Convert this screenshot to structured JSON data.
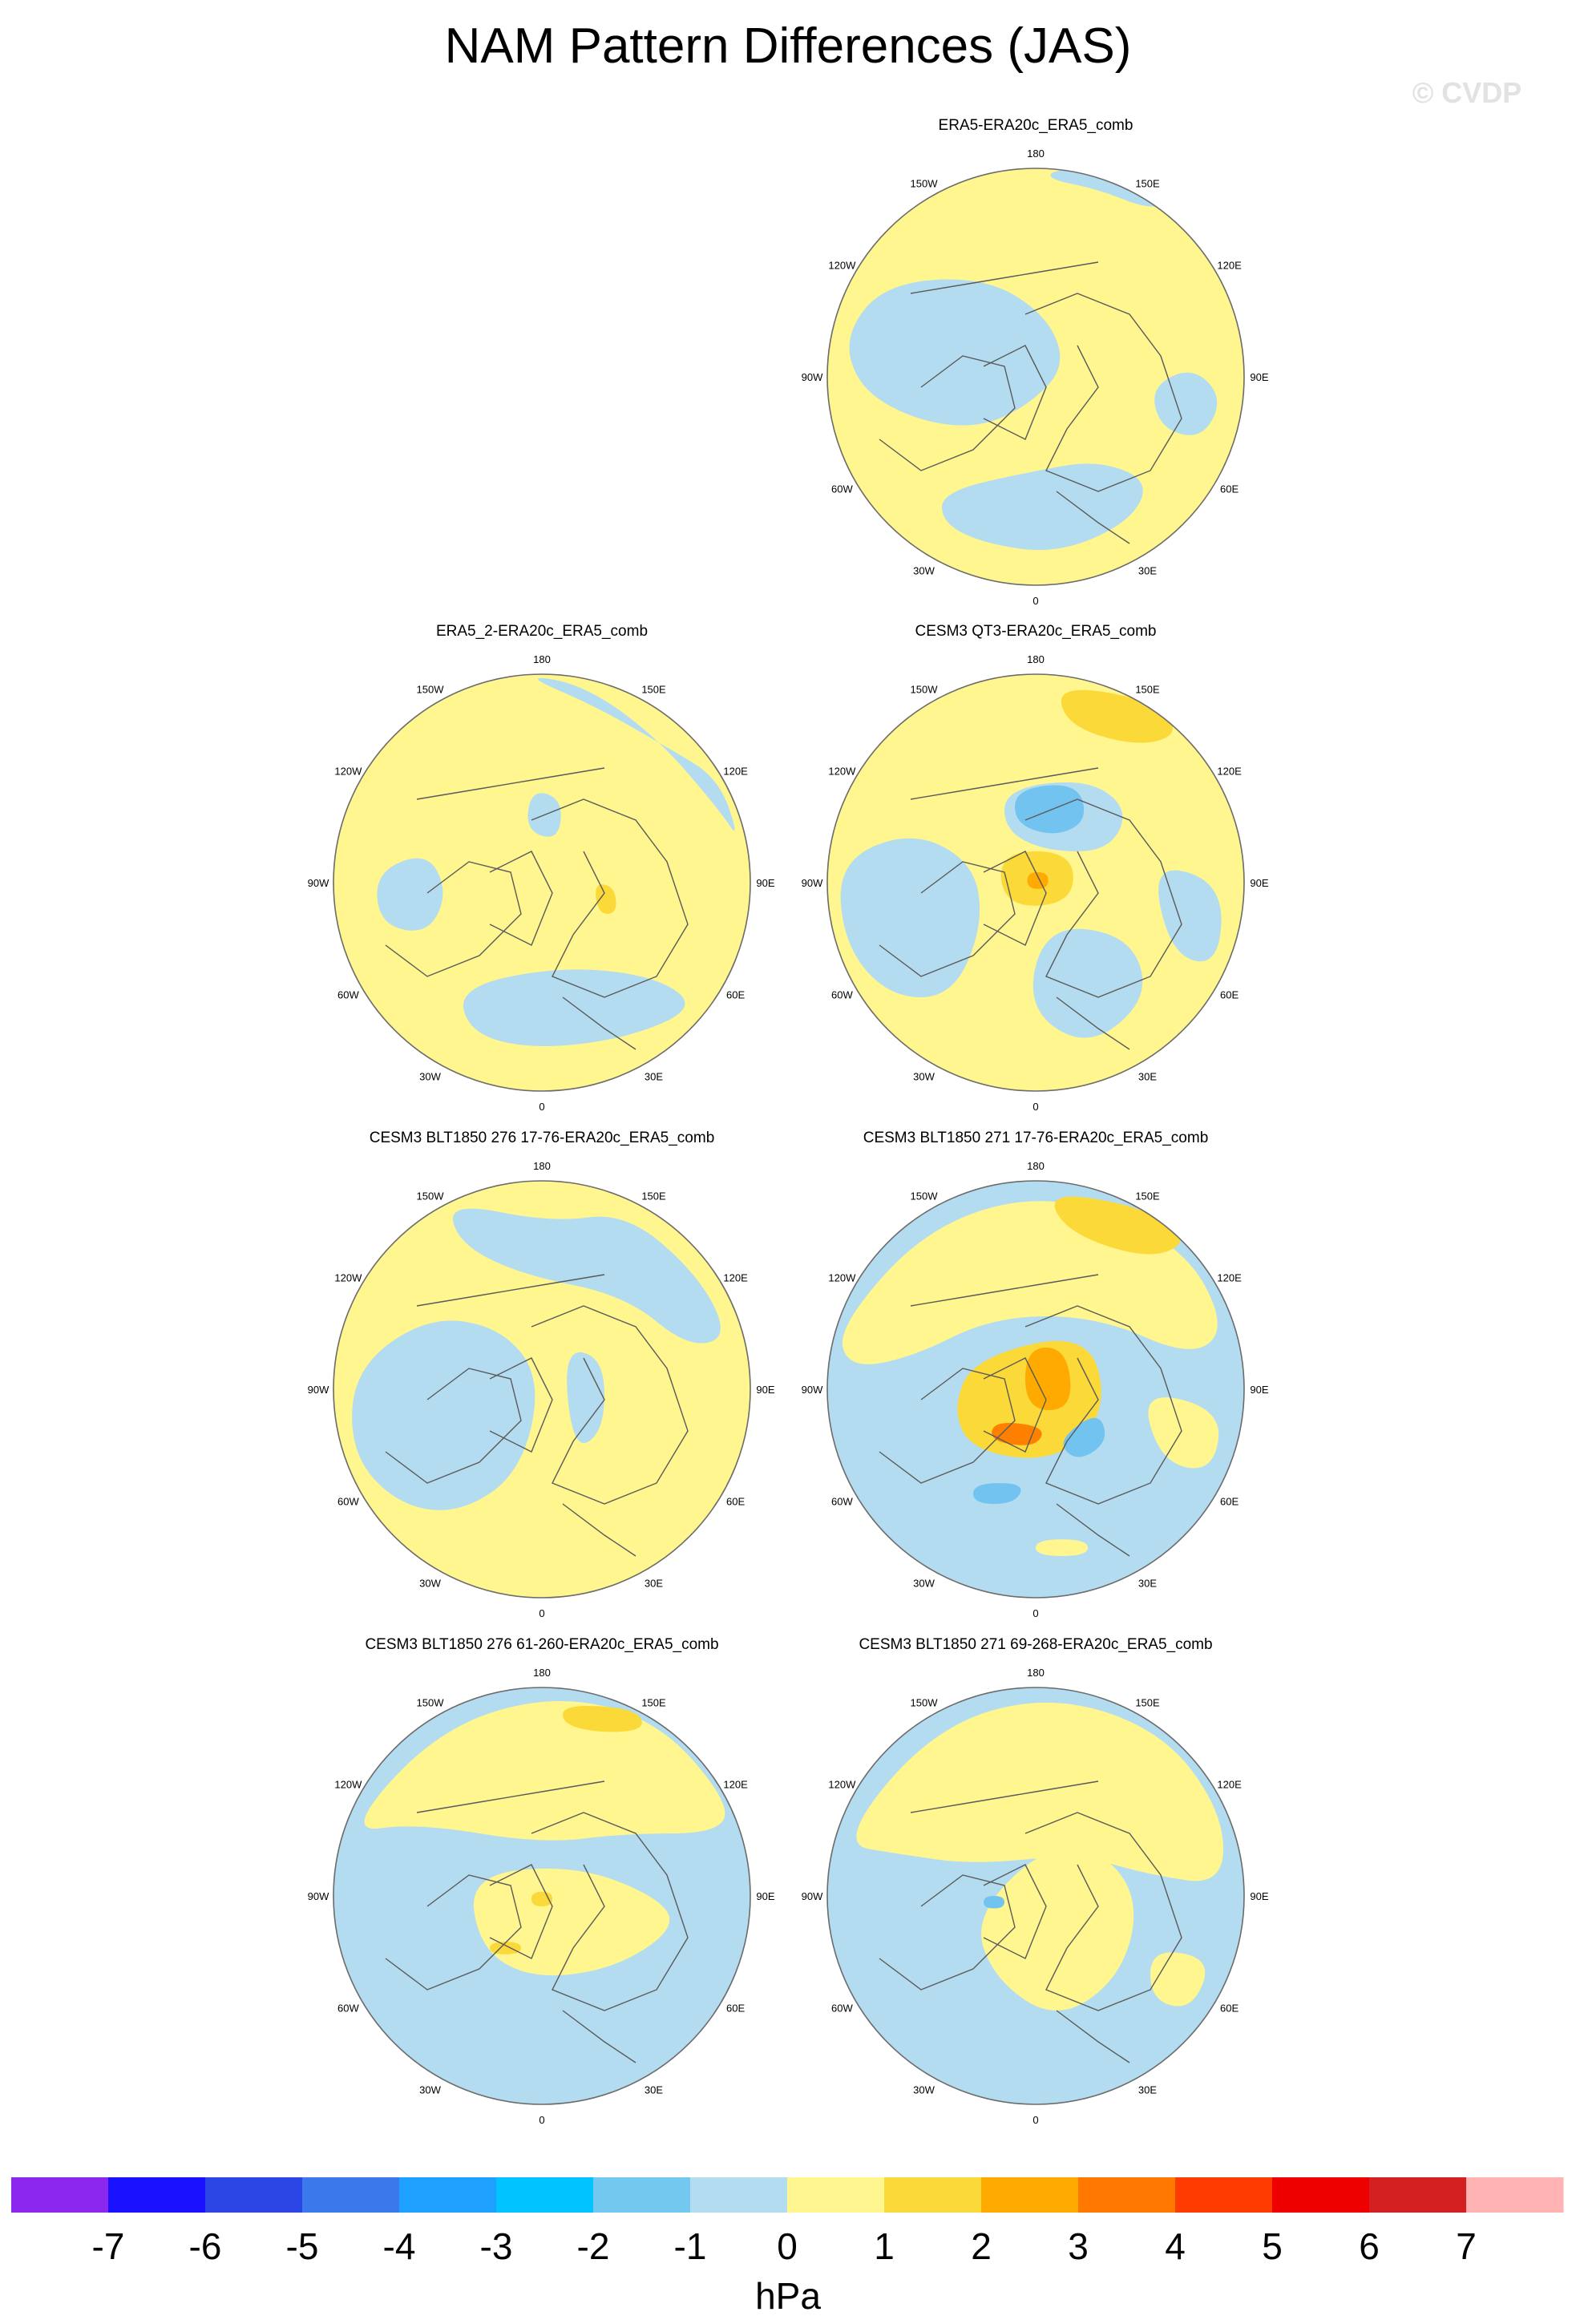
{
  "title": "NAM Pattern Differences (JAS)",
  "watermark": "© CVDP",
  "colors": {
    "land_line": "#5a5a5a",
    "frame": "#6b6b6b",
    "watermark": "#e2e2e2"
  },
  "lon_labels": [
    "180",
    "150E",
    "120E",
    "90E",
    "60E",
    "30E",
    "0",
    "30W",
    "60W",
    "90W",
    "120W",
    "150W"
  ],
  "panels": [
    {
      "title": "ERA5-ERA20c_ERA5_comb",
      "base_color": "#fff68f",
      "blobs": [
        {
          "color": "#b4dcf0",
          "pts": [
            [
              0.05,
              -0.95
            ],
            [
              0.3,
              -0.9
            ],
            [
              0.55,
              -0.8
            ],
            [
              0.65,
              -0.85
            ],
            [
              0.5,
              -0.98
            ],
            [
              0.1,
              -1.0
            ]
          ]
        },
        {
          "color": "#b4dcf0",
          "pts": [
            [
              -0.72,
              -0.45
            ],
            [
              -0.25,
              -0.48
            ],
            [
              0.05,
              -0.3
            ],
            [
              0.15,
              -0.05
            ],
            [
              -0.05,
              0.15
            ],
            [
              -0.3,
              0.25
            ],
            [
              -0.6,
              0.2
            ],
            [
              -0.85,
              0.05
            ],
            [
              -0.92,
              -0.2
            ]
          ]
        },
        {
          "color": "#b4dcf0",
          "pts": [
            [
              -0.45,
              0.55
            ],
            [
              0.0,
              0.45
            ],
            [
              0.3,
              0.4
            ],
            [
              0.55,
              0.5
            ],
            [
              0.45,
              0.7
            ],
            [
              0.1,
              0.85
            ],
            [
              -0.25,
              0.8
            ],
            [
              -0.45,
              0.7
            ]
          ]
        },
        {
          "color": "#b4dcf0",
          "pts": [
            [
              0.55,
              0.05
            ],
            [
              0.75,
              -0.05
            ],
            [
              0.9,
              0.1
            ],
            [
              0.8,
              0.3
            ],
            [
              0.6,
              0.25
            ]
          ]
        }
      ]
    },
    {
      "title": "ERA5_2-ERA20c_ERA5_comb",
      "base_color": "#fff68f",
      "blobs": [
        {
          "color": "#b4dcf0",
          "pts": [
            [
              -0.1,
              -1.0
            ],
            [
              0.25,
              -0.85
            ],
            [
              0.6,
              -0.65
            ],
            [
              0.85,
              -0.5
            ],
            [
              0.95,
              -0.2
            ],
            [
              0.85,
              -0.35
            ],
            [
              0.55,
              -0.7
            ],
            [
              0.2,
              -0.95
            ]
          ]
        },
        {
          "color": "#b4dcf0",
          "pts": [
            [
              -0.4,
              0.5
            ],
            [
              0.1,
              0.4
            ],
            [
              0.55,
              0.45
            ],
            [
              0.75,
              0.6
            ],
            [
              0.4,
              0.75
            ],
            [
              -0.05,
              0.8
            ],
            [
              -0.35,
              0.72
            ]
          ]
        },
        {
          "color": "#b4dcf0",
          "pts": [
            [
              -0.8,
              -0.05
            ],
            [
              -0.55,
              -0.15
            ],
            [
              -0.45,
              0.05
            ],
            [
              -0.55,
              0.25
            ],
            [
              -0.78,
              0.2
            ]
          ]
        },
        {
          "color": "#b4dcf0",
          "pts": [
            [
              -0.05,
              -0.45
            ],
            [
              0.1,
              -0.4
            ],
            [
              0.08,
              -0.2
            ],
            [
              -0.08,
              -0.25
            ]
          ]
        },
        {
          "color": "#fbd938",
          "pts": [
            [
              0.25,
              0.0
            ],
            [
              0.35,
              0.02
            ],
            [
              0.36,
              0.15
            ],
            [
              0.27,
              0.15
            ]
          ]
        }
      ]
    },
    {
      "title": "CESM3 QT3-ERA20c_ERA5_comb",
      "base_color": "#fff68f",
      "blobs": [
        {
          "color": "#b4dcf0",
          "pts": [
            [
              -0.95,
              -0.1
            ],
            [
              -0.6,
              -0.25
            ],
            [
              -0.3,
              -0.1
            ],
            [
              -0.25,
              0.2
            ],
            [
              -0.4,
              0.55
            ],
            [
              -0.7,
              0.55
            ],
            [
              -0.92,
              0.3
            ]
          ]
        },
        {
          "color": "#b4dcf0",
          "pts": [
            [
              -0.15,
              -0.45
            ],
            [
              0.25,
              -0.5
            ],
            [
              0.45,
              -0.35
            ],
            [
              0.35,
              -0.15
            ],
            [
              0.05,
              -0.15
            ],
            [
              -0.15,
              -0.25
            ]
          ]
        },
        {
          "color": "#b4dcf0",
          "pts": [
            [
              0.05,
              0.2
            ],
            [
              0.45,
              0.25
            ],
            [
              0.55,
              0.55
            ],
            [
              0.25,
              0.8
            ],
            [
              -0.05,
              0.6
            ]
          ]
        },
        {
          "color": "#b4dcf0",
          "pts": [
            [
              0.55,
              -0.1
            ],
            [
              0.9,
              0.0
            ],
            [
              0.88,
              0.4
            ],
            [
              0.65,
              0.35
            ]
          ]
        },
        {
          "color": "#73c3f0",
          "pts": [
            [
              -0.1,
              -0.45
            ],
            [
              0.2,
              -0.48
            ],
            [
              0.25,
              -0.3
            ],
            [
              0.1,
              -0.22
            ],
            [
              -0.1,
              -0.28
            ]
          ]
        },
        {
          "color": "#fbd938",
          "pts": [
            [
              0.1,
              -0.95
            ],
            [
              0.55,
              -0.88
            ],
            [
              0.7,
              -0.72
            ],
            [
              0.5,
              -0.65
            ],
            [
              0.15,
              -0.75
            ]
          ]
        },
        {
          "color": "#fbd938",
          "pts": [
            [
              -0.18,
              -0.15
            ],
            [
              0.18,
              -0.15
            ],
            [
              0.18,
              0.1
            ],
            [
              -0.15,
              0.12
            ]
          ]
        },
        {
          "color": "#ffaa00",
          "pts": [
            [
              -0.04,
              -0.05
            ],
            [
              0.06,
              -0.05
            ],
            [
              0.06,
              0.03
            ],
            [
              -0.04,
              0.03
            ]
          ]
        }
      ]
    },
    {
      "title": "CESM3 BLT1850 276 17-76-ERA20c_ERA5_comb",
      "base_color": "#fff68f",
      "blobs": [
        {
          "color": "#b4dcf0",
          "pts": [
            [
              -0.45,
              -0.9
            ],
            [
              0.05,
              -0.8
            ],
            [
              0.4,
              -0.85
            ],
            [
              0.75,
              -0.55
            ],
            [
              0.9,
              -0.25
            ],
            [
              0.7,
              -0.2
            ],
            [
              0.4,
              -0.45
            ],
            [
              -0.1,
              -0.55
            ],
            [
              -0.4,
              -0.7
            ]
          ]
        },
        {
          "color": "#b4dcf0",
          "pts": [
            [
              -0.9,
              -0.1
            ],
            [
              -0.55,
              -0.35
            ],
            [
              -0.2,
              -0.3
            ],
            [
              0.0,
              -0.05
            ],
            [
              -0.1,
              0.4
            ],
            [
              -0.4,
              0.6
            ],
            [
              -0.7,
              0.55
            ],
            [
              -0.92,
              0.3
            ]
          ]
        },
        {
          "color": "#b4dcf0",
          "pts": [
            [
              0.1,
              -0.2
            ],
            [
              0.3,
              -0.15
            ],
            [
              0.3,
              0.2
            ],
            [
              0.15,
              0.3
            ]
          ]
        }
      ]
    },
    {
      "title": "CESM3 BLT1850 271 17-76-ERA20c_ERA5_comb",
      "base_color": "#b4dcf0",
      "blobs": [
        {
          "color": "#fff68f",
          "pts": [
            [
              -0.95,
              -0.3
            ],
            [
              -0.5,
              -0.8
            ],
            [
              0.1,
              -0.95
            ],
            [
              0.7,
              -0.7
            ],
            [
              0.92,
              -0.3
            ],
            [
              0.75,
              -0.15
            ],
            [
              0.3,
              -0.35
            ],
            [
              -0.2,
              -0.35
            ],
            [
              -0.6,
              -0.15
            ],
            [
              -0.9,
              -0.1
            ]
          ]
        },
        {
          "color": "#fff68f",
          "pts": [
            [
              0.5,
              0.0
            ],
            [
              0.9,
              0.1
            ],
            [
              0.85,
              0.4
            ],
            [
              0.6,
              0.35
            ]
          ]
        },
        {
          "color": "#fbd938",
          "pts": [
            [
              0.05,
              -0.95
            ],
            [
              0.5,
              -0.88
            ],
            [
              0.75,
              -0.72
            ],
            [
              0.55,
              -0.62
            ],
            [
              0.15,
              -0.75
            ]
          ]
        },
        {
          "color": "#fbd938",
          "pts": [
            [
              -0.3,
              -0.15
            ],
            [
              0.25,
              -0.28
            ],
            [
              0.35,
              0.1
            ],
            [
              0.1,
              0.35
            ],
            [
              -0.3,
              0.3
            ],
            [
              -0.4,
              0.1
            ]
          ]
        },
        {
          "color": "#ffaa00",
          "pts": [
            [
              -0.05,
              -0.2
            ],
            [
              0.15,
              -0.2
            ],
            [
              0.18,
              0.1
            ],
            [
              -0.05,
              0.1
            ]
          ]
        },
        {
          "color": "#ff8000",
          "pts": [
            [
              -0.2,
              0.15
            ],
            [
              0.05,
              0.18
            ],
            [
              0.0,
              0.28
            ],
            [
              -0.22,
              0.25
            ]
          ]
        },
        {
          "color": "#73c3f0",
          "pts": [
            [
              0.1,
              0.25
            ],
            [
              0.3,
              0.1
            ],
            [
              0.35,
              0.25
            ],
            [
              0.2,
              0.35
            ]
          ]
        },
        {
          "color": "#73c3f0",
          "pts": [
            [
              -0.3,
              0.45
            ],
            [
              -0.05,
              0.45
            ],
            [
              -0.1,
              0.55
            ],
            [
              -0.3,
              0.55
            ]
          ]
        },
        {
          "color": "#fff68f",
          "pts": [
            [
              0.0,
              0.72
            ],
            [
              0.25,
              0.72
            ],
            [
              0.25,
              0.8
            ],
            [
              0.0,
              0.8
            ]
          ]
        }
      ]
    },
    {
      "title": "CESM3 BLT1850 276 61-260-ERA20c_ERA5_comb",
      "base_color": "#b4dcf0",
      "blobs": [
        {
          "color": "#fff68f",
          "pts": [
            [
              -0.95,
              -0.3
            ],
            [
              -0.5,
              -0.8
            ],
            [
              0.05,
              -0.97
            ],
            [
              0.55,
              -0.85
            ],
            [
              0.9,
              -0.45
            ],
            [
              0.85,
              -0.3
            ],
            [
              0.4,
              -0.3
            ],
            [
              0.0,
              -0.25
            ],
            [
              -0.6,
              -0.35
            ]
          ]
        },
        {
          "color": "#fff68f",
          "pts": [
            [
              -0.35,
              -0.1
            ],
            [
              0.15,
              -0.15
            ],
            [
              0.55,
              0.0
            ],
            [
              0.65,
              0.15
            ],
            [
              0.35,
              0.35
            ],
            [
              -0.05,
              0.4
            ],
            [
              -0.3,
              0.25
            ]
          ]
        },
        {
          "color": "#fbd938",
          "pts": [
            [
              0.1,
              -0.92
            ],
            [
              0.45,
              -0.9
            ],
            [
              0.5,
              -0.8
            ],
            [
              0.3,
              -0.78
            ],
            [
              0.1,
              -0.82
            ]
          ]
        },
        {
          "color": "#fbd938",
          "pts": [
            [
              -0.05,
              -0.02
            ],
            [
              0.05,
              -0.02
            ],
            [
              0.05,
              0.05
            ],
            [
              -0.05,
              0.05
            ]
          ]
        },
        {
          "color": "#fbd938",
          "pts": [
            [
              -0.25,
              0.22
            ],
            [
              -0.1,
              0.22
            ],
            [
              -0.1,
              0.28
            ],
            [
              -0.25,
              0.28
            ]
          ]
        }
      ]
    },
    {
      "title": "CESM3 BLT1850 271 69-268-ERA20c_ERA5_comb",
      "base_color": "#b4dcf0",
      "blobs": [
        {
          "color": "#fff68f",
          "pts": [
            [
              -0.95,
              -0.25
            ],
            [
              -0.5,
              -0.8
            ],
            [
              0.05,
              -0.97
            ],
            [
              0.6,
              -0.8
            ],
            [
              0.9,
              -0.4
            ],
            [
              0.9,
              -0.05
            ],
            [
              0.55,
              -0.1
            ],
            [
              0.2,
              -0.2
            ],
            [
              -0.3,
              -0.15
            ],
            [
              -0.65,
              -0.2
            ]
          ]
        },
        {
          "color": "#fff68f",
          "pts": [
            [
              0.05,
              -0.25
            ],
            [
              0.35,
              -0.2
            ],
            [
              0.5,
              0.05
            ],
            [
              0.4,
              0.4
            ],
            [
              0.1,
              0.6
            ],
            [
              -0.2,
              0.4
            ],
            [
              -0.3,
              0.1
            ]
          ]
        },
        {
          "color": "#fff68f",
          "pts": [
            [
              0.55,
              0.25
            ],
            [
              0.85,
              0.3
            ],
            [
              0.75,
              0.55
            ],
            [
              0.55,
              0.5
            ]
          ]
        },
        {
          "color": "#73c3f0",
          "pts": [
            [
              -0.25,
              0.0
            ],
            [
              -0.15,
              0.0
            ],
            [
              -0.15,
              0.06
            ],
            [
              -0.25,
              0.06
            ]
          ]
        }
      ]
    }
  ],
  "colorbar": {
    "unit": "hPa",
    "colors": [
      "#8c28ee",
      "#1a12ff",
      "#2b46e5",
      "#3b78eb",
      "#1ea0ff",
      "#00c3ff",
      "#73c8f0",
      "#b4dcf0",
      "#fff68f",
      "#fbd938",
      "#ffaa00",
      "#ff7800",
      "#ff3c00",
      "#ee0000",
      "#d42020",
      "#ffb3b3"
    ],
    "labels": [
      "-7",
      "-6",
      "-5",
      "-4",
      "-3",
      "-2",
      "-1",
      "0",
      "1",
      "2",
      "3",
      "4",
      "5",
      "6",
      "7"
    ]
  }
}
